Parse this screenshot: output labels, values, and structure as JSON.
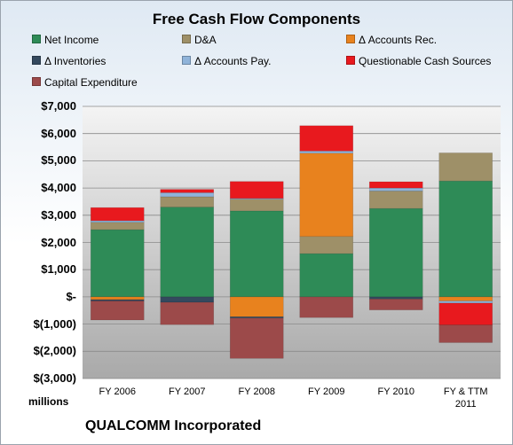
{
  "chart_data": {
    "type": "bar",
    "stacked": true,
    "title": "Free Cash Flow Components",
    "units_label": "millions",
    "company_label": "QUALCOMM Incorporated",
    "categories": [
      "FY 2006",
      "FY 2007",
      "FY 2008",
      "FY 2009",
      "FY 2010",
      "FY & TTM 2011"
    ],
    "category_lines": [
      [
        "FY 2006"
      ],
      [
        "FY 2007"
      ],
      [
        "FY 2008"
      ],
      [
        "FY 2009"
      ],
      [
        "FY 2010"
      ],
      [
        "FY & TTM",
        "2011"
      ]
    ],
    "ylim": [
      -3000,
      7000
    ],
    "yticks": [
      7000,
      6000,
      5000,
      4000,
      3000,
      2000,
      1000,
      0,
      -1000,
      -2000,
      -3000
    ],
    "ytick_labels": [
      "$7,000",
      "$6,000",
      "$5,000",
      "$4,000",
      "$3,000",
      "$2,000",
      "$1,000",
      "$-",
      "$(1,000)",
      "$(2,000)",
      "$(3,000)"
    ],
    "grid": true,
    "legend_position": "top",
    "series": [
      {
        "name": "Net Income",
        "color": "#2e8b57",
        "values": [
          2470,
          3300,
          3160,
          1590,
          3250,
          4260
        ]
      },
      {
        "name": "D&A",
        "color": "#9e9068",
        "values": [
          270,
          380,
          430,
          630,
          640,
          1030
        ]
      },
      {
        "name": "Δ Accounts Rec.",
        "color": "#e8821e",
        "values": [
          -100,
          0,
          -730,
          3060,
          0,
          -150
        ]
      },
      {
        "name": "Δ Inventories",
        "color": "#34495e",
        "values": [
          -50,
          -200,
          -50,
          0,
          -80,
          0
        ]
      },
      {
        "name": "Δ Accounts Pay.",
        "color": "#8fb3d9",
        "values": [
          60,
          150,
          30,
          80,
          110,
          -80
        ]
      },
      {
        "name": "Questionable Cash Sources",
        "color": "#e8191e",
        "values": [
          480,
          120,
          620,
          930,
          230,
          -800
        ]
      },
      {
        "name": "Capital Expenditure",
        "color": "#9c4a4a",
        "values": [
          -700,
          -820,
          -1480,
          -760,
          -400,
          -650
        ]
      }
    ]
  }
}
